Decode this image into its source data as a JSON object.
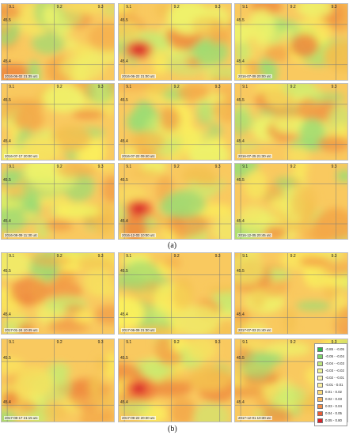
{
  "captions": {
    "a": "(a)",
    "b": "(b)"
  },
  "axis": {
    "lon_labels": [
      "9.1",
      "9.2",
      "9.3"
    ],
    "lat_labels": [
      "45.5",
      "45.4"
    ]
  },
  "panels_a": [
    {
      "timestamp": "2016-06-02 21:35 utc",
      "hotspot": false
    },
    {
      "timestamp": "2016-06-22 21:00 utc",
      "hotspot": true
    },
    {
      "timestamp": "2016-07-09 20:00 utc",
      "hotspot": false
    },
    {
      "timestamp": "2016-07-17 20:00 utc",
      "hotspot": false
    },
    {
      "timestamp": "2016-07-22 09:40 utc",
      "hotspot": false
    },
    {
      "timestamp": "2016-07-25 21:30 utc",
      "hotspot": false
    },
    {
      "timestamp": "2016-08-09 11:30 utc",
      "hotspot": false
    },
    {
      "timestamp": "2016-12-03 10:00 utc",
      "hotspot": true
    },
    {
      "timestamp": "2016-12-05 20:45 utc",
      "hotspot": false
    }
  ],
  "panels_b": [
    {
      "timestamp": "2017-01-24 10:45 utc",
      "hotspot": false
    },
    {
      "timestamp": "2017-06-09 21:30 utc",
      "hotspot": false
    },
    {
      "timestamp": "2017-07-03 21:40 utc",
      "hotspot": false
    },
    {
      "timestamp": "2017-08-17 21:15 utc",
      "hotspot": false
    },
    {
      "timestamp": "2017-09-22 20:30 utc",
      "hotspot": true
    },
    {
      "timestamp": "2017-12-01 10:30 utc",
      "hotspot": false
    }
  ],
  "legend": {
    "entries": [
      {
        "label": "-0.85 - -0.05",
        "color": "#2fb84a"
      },
      {
        "label": "-0.05 - -0.04",
        "color": "#7ed36a"
      },
      {
        "label": "-0.04 - -0.03",
        "color": "#bfe77d"
      },
      {
        "label": "-0.03 - -0.02",
        "color": "#eef596"
      },
      {
        "label": "-0.02 - -0.01",
        "color": "#fbf8b0"
      },
      {
        "label": "-0.01 - 0.01",
        "color": "#fdf1a0"
      },
      {
        "label": "0.01 - 0.02",
        "color": "#fbd97a"
      },
      {
        "label": "0.02 - 0.03",
        "color": "#f8b55c"
      },
      {
        "label": "0.03 - 0.04",
        "color": "#f38c45"
      },
      {
        "label": "0.04 - 0.05",
        "color": "#ea5c36"
      },
      {
        "label": "0.05 - 0.80",
        "color": "#d8232a"
      }
    ]
  }
}
